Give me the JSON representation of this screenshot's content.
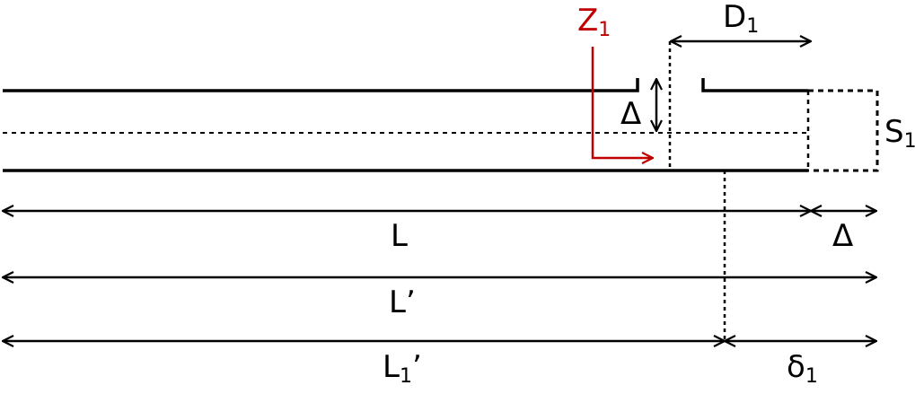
{
  "labels": {
    "z1": {
      "main": "Z",
      "sub": "1"
    },
    "d1": {
      "main": "D",
      "sub": "1"
    },
    "delta_v": {
      "main": "Δ"
    },
    "s1": {
      "main": "S",
      "sub": "1"
    },
    "l": {
      "main": "L"
    },
    "delta_h": {
      "main": "Δ"
    },
    "l_prime": {
      "main": "L’"
    },
    "l1_prime": {
      "main": "L",
      "sub": "1",
      "suffix": "’"
    },
    "delta1": {
      "main": "δ",
      "sub": "1"
    }
  },
  "colors": {
    "line": "#000000",
    "accent": "#c00000"
  }
}
